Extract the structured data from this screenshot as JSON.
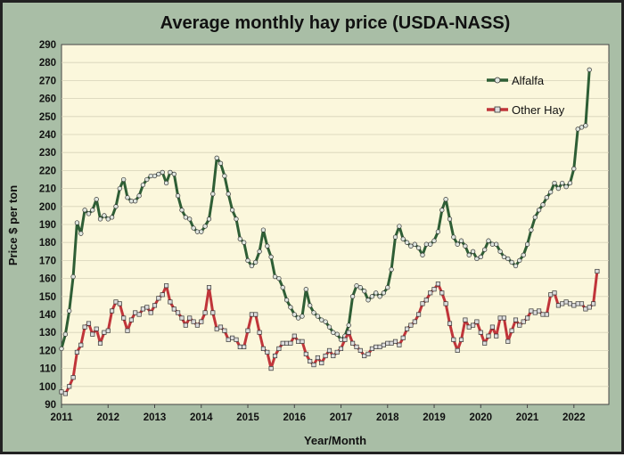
{
  "chart_data": {
    "type": "line",
    "title": "Average monthly hay price (USDA-NASS)",
    "xlabel": "Year/Month",
    "ylabel": "Price $ per ton",
    "ylim": [
      90,
      290
    ],
    "yticks": [
      90,
      100,
      110,
      120,
      130,
      140,
      150,
      160,
      170,
      180,
      190,
      200,
      210,
      220,
      230,
      240,
      250,
      260,
      270,
      280,
      290
    ],
    "xlim": [
      2011,
      2022.75
    ],
    "xticks": [
      "2011",
      "2012",
      "2013",
      "2014",
      "2015",
      "2016",
      "2017",
      "2018",
      "2019",
      "2020",
      "2021",
      "2022"
    ],
    "grid": "horizontal",
    "legend_position": "top-right",
    "x_start_year": 2011,
    "months_per_year": 12,
    "series": [
      {
        "name": "Alfalfa",
        "color": "#2e5e35",
        "values": [
          121,
          129,
          142,
          161,
          191,
          185,
          198,
          196,
          198,
          204,
          193,
          195,
          193,
          194,
          200,
          210,
          215,
          205,
          203,
          203,
          206,
          212,
          215,
          217,
          217,
          218,
          219,
          213,
          219,
          218,
          206,
          198,
          194,
          193,
          188,
          186,
          186,
          189,
          193,
          207,
          227,
          224,
          217,
          207,
          198,
          193,
          182,
          180,
          170,
          167,
          169,
          175,
          187,
          178,
          172,
          161,
          160,
          155,
          148,
          144,
          140,
          138,
          139,
          154,
          145,
          141,
          139,
          137,
          136,
          133,
          130,
          129,
          126,
          128,
          134,
          150,
          156,
          155,
          153,
          148,
          150,
          152,
          150,
          152,
          155,
          165,
          183,
          189,
          182,
          180,
          178,
          179,
          177,
          173,
          179,
          179,
          181,
          186,
          198,
          204,
          193,
          183,
          179,
          181,
          178,
          173,
          175,
          171,
          172,
          176,
          181,
          179,
          179,
          175,
          172,
          171,
          169,
          167,
          170,
          173,
          179,
          187,
          194,
          198,
          201,
          205,
          208,
          213,
          210,
          213,
          211,
          213,
          221,
          243,
          244,
          245,
          276
        ]
      },
      {
        "name": "Other Hay",
        "color": "#c0353a",
        "values": [
          97,
          96,
          100,
          105,
          119,
          123,
          133,
          135,
          129,
          132,
          124,
          130,
          131,
          142,
          147,
          146,
          138,
          131,
          137,
          141,
          140,
          143,
          144,
          141,
          145,
          149,
          151,
          156,
          147,
          143,
          141,
          138,
          134,
          138,
          136,
          134,
          136,
          141,
          155,
          141,
          132,
          133,
          131,
          126,
          127,
          126,
          122,
          122,
          131,
          140,
          140,
          130,
          121,
          119,
          110,
          117,
          121,
          124,
          124,
          124,
          128,
          125,
          125,
          118,
          114,
          112,
          116,
          113,
          117,
          120,
          117,
          119,
          121,
          126,
          130,
          124,
          122,
          120,
          117,
          118,
          121,
          122,
          122,
          123,
          124,
          124,
          125,
          123,
          127,
          132,
          134,
          136,
          140,
          146,
          148,
          152,
          154,
          157,
          152,
          146,
          135,
          126,
          120,
          126,
          137,
          133,
          134,
          136,
          130,
          124,
          128,
          133,
          128,
          138,
          138,
          125,
          131,
          137,
          134,
          136,
          138,
          142,
          141,
          142,
          140,
          140,
          151,
          152,
          145,
          146,
          147,
          146,
          145,
          146,
          146,
          143,
          144,
          146,
          164
        ]
      }
    ]
  }
}
